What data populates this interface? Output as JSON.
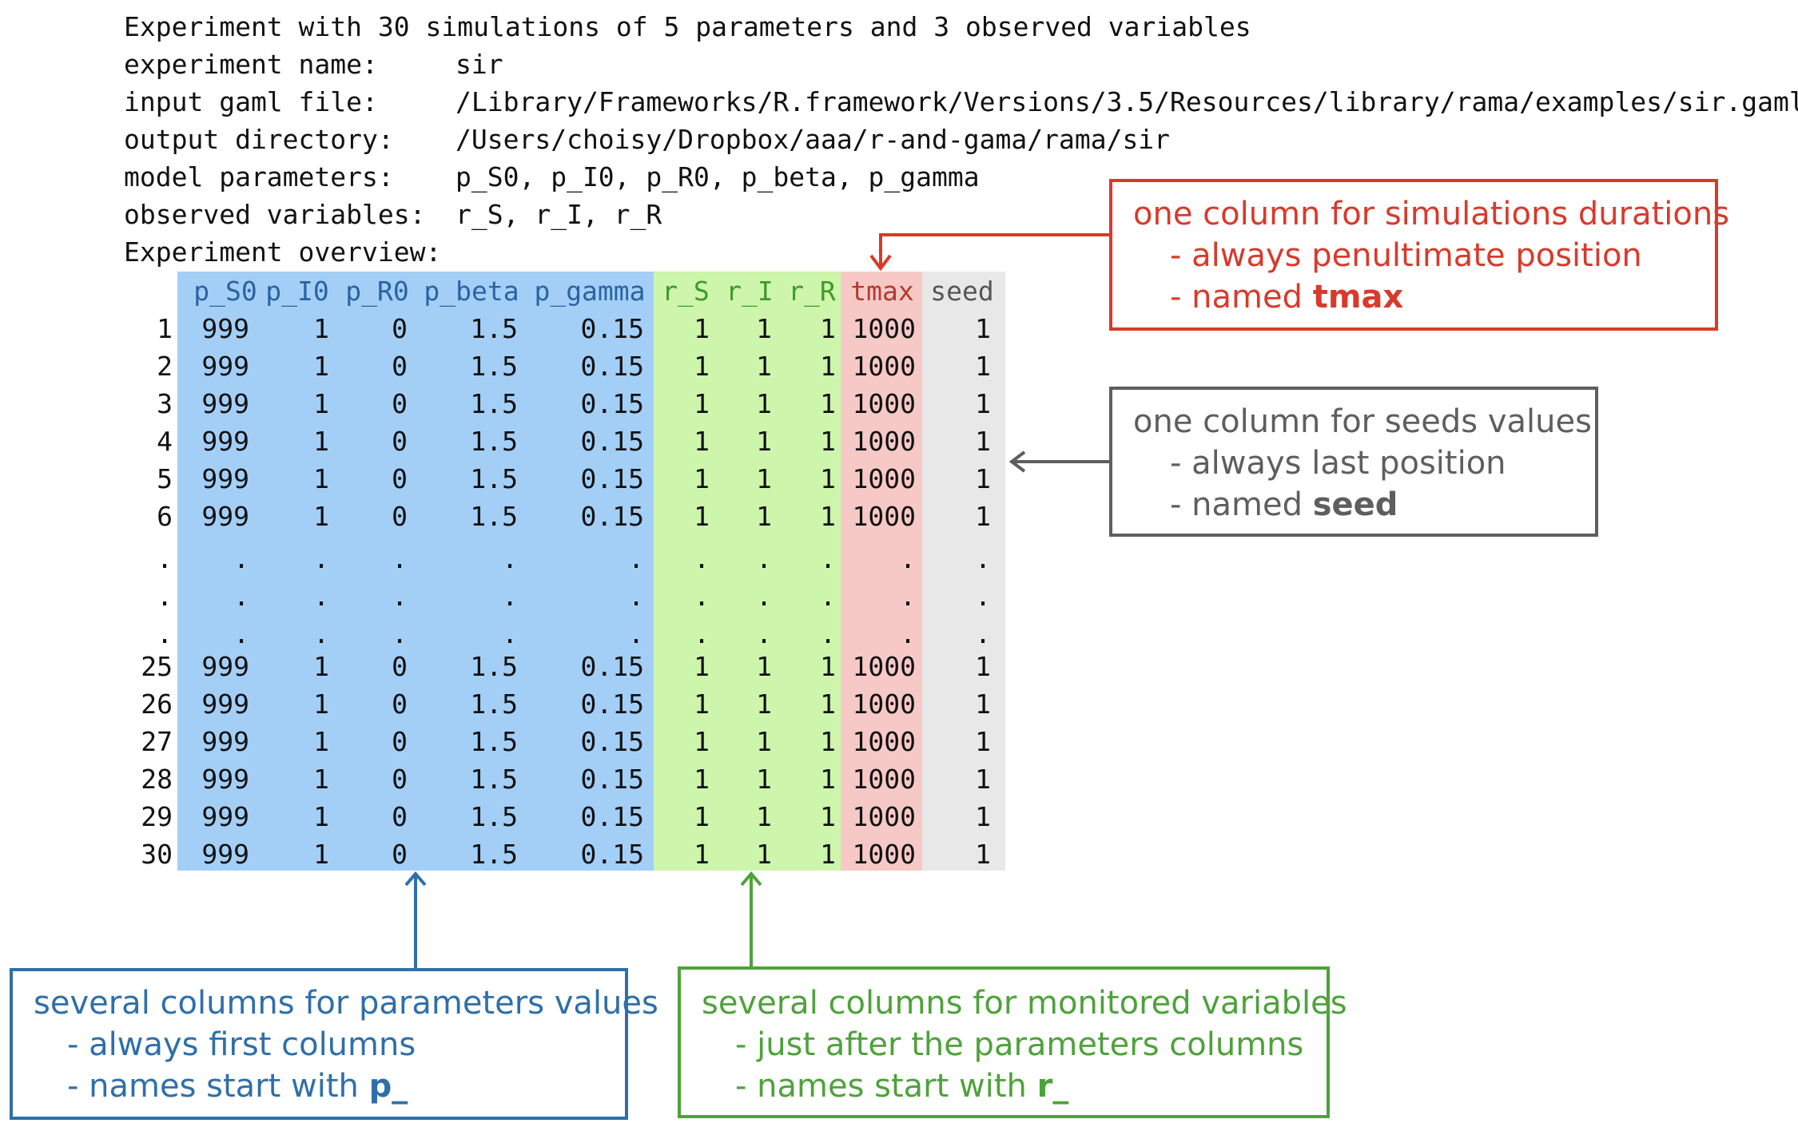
{
  "header": {
    "title": "Experiment with 30 simulations of 5 parameters and 3 observed variables",
    "rows": [
      {
        "label": "experiment name:",
        "value": "sir"
      },
      {
        "label": "input gaml file:",
        "value": "/Library/Frameworks/R.framework/Versions/3.5/Resources/library/rama/examples/sir.gaml"
      },
      {
        "label": "output directory:",
        "value": "/Users/choisy/Dropbox/aaa/r-and-gama/rama/sir"
      },
      {
        "label": "model parameters:",
        "value": "p_S0, p_I0, p_R0, p_beta, p_gamma"
      },
      {
        "label": "observed variables:",
        "value": "r_S, r_I, r_R"
      }
    ],
    "overview_label": "Experiment overview:"
  },
  "table": {
    "columns": [
      "p_S0",
      "p_I0",
      "p_R0",
      "p_beta",
      "p_gamma",
      "r_S",
      "r_I",
      "r_R",
      "tmax",
      "seed"
    ],
    "row_values": [
      "999",
      "1",
      "0",
      "1.5",
      "0.15",
      "1",
      "1",
      "1",
      "1000",
      "1"
    ],
    "row_indices": [
      "1",
      "2",
      "3",
      "4",
      "5",
      "6",
      ".",
      ".",
      ".",
      "25",
      "26",
      "27",
      "28",
      "29",
      "30"
    ],
    "ellipsis": "."
  },
  "callouts": {
    "tmax": {
      "title": "one column for simulations durations",
      "line1": "- always penultimate position",
      "line2_prefix": "- named ",
      "line2_bold": "tmax",
      "color": "#d83a2c"
    },
    "seed": {
      "title": "one column for seeds values",
      "line1": "- always last position",
      "line2_prefix": "- named ",
      "line2_bold": "seed",
      "color": "#5e5e5e"
    },
    "params": {
      "title": "several columns for parameters values",
      "line1": "- always first columns",
      "line2_prefix": "- names start with ",
      "line2_bold": "p_",
      "color": "#2f6fa8"
    },
    "vars": {
      "title": "several columns for monitored variables",
      "line1": "- just after the parameters columns",
      "line2_prefix": "- names start with ",
      "line2_bold": "r_",
      "color": "#4ea23a"
    }
  },
  "colors": {
    "params_band": "#a3cff7",
    "vars_band": "#cdf6ac",
    "tmax_band": "#f6c9c6",
    "seed_band": "#e8e8e8"
  }
}
